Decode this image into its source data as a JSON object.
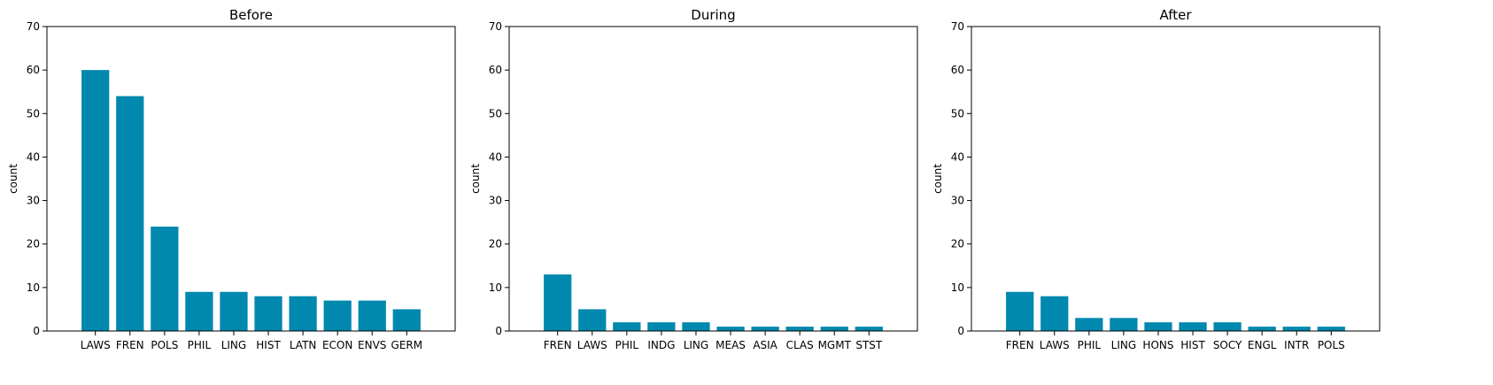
{
  "chart_data": [
    {
      "type": "bar",
      "title": "Before",
      "xlabel": "",
      "ylabel": "count",
      "ylim": [
        0,
        70
      ],
      "yticks": [
        0,
        10,
        20,
        30,
        40,
        50,
        60,
        70
      ],
      "color": "#0088ae",
      "grid": false,
      "categories": [
        "LAWS",
        "FREN",
        "POLS",
        "PHIL",
        "LING",
        "HIST",
        "LATN",
        "ECON",
        "ENVS",
        "GERM"
      ],
      "values": [
        60,
        54,
        24,
        9,
        9,
        8,
        8,
        7,
        7,
        5
      ]
    },
    {
      "type": "bar",
      "title": "During",
      "xlabel": "",
      "ylabel": "count",
      "ylim": [
        0,
        70
      ],
      "yticks": [
        0,
        10,
        20,
        30,
        40,
        50,
        60,
        70
      ],
      "color": "#0088ae",
      "grid": false,
      "categories": [
        "FREN",
        "LAWS",
        "PHIL",
        "INDG",
        "LING",
        "MEAS",
        "ASIA",
        "CLAS",
        "MGMT",
        "STST"
      ],
      "values": [
        13,
        5,
        2,
        2,
        2,
        1,
        1,
        1,
        1,
        1
      ]
    },
    {
      "type": "bar",
      "title": "After",
      "xlabel": "",
      "ylabel": "count",
      "ylim": [
        0,
        70
      ],
      "yticks": [
        0,
        10,
        20,
        30,
        40,
        50,
        60,
        70
      ],
      "color": "#0088ae",
      "grid": false,
      "categories": [
        "FREN",
        "LAWS",
        "PHIL",
        "LING",
        "HONS",
        "HIST",
        "SOCY",
        "ENGL",
        "INTR",
        "POLS"
      ],
      "values": [
        9,
        8,
        3,
        3,
        2,
        2,
        2,
        1,
        1,
        1
      ]
    }
  ]
}
